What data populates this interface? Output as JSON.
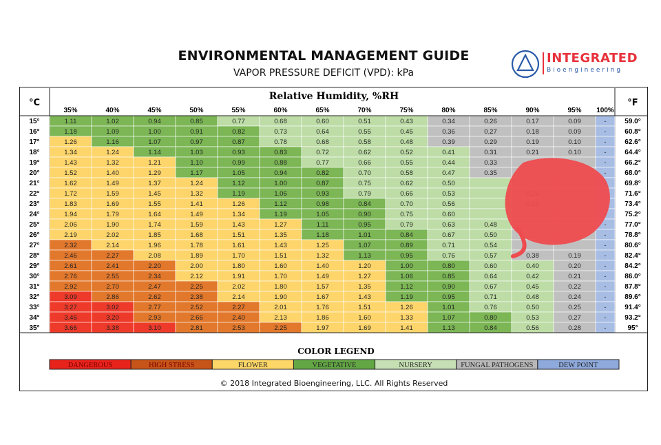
{
  "header": {
    "title": "ENVIRONMENTAL MANAGEMENT GUIDE",
    "subtitle": "VAPOR PRESSURE DEFICIT (VPD): kPa"
  },
  "logo": {
    "brand": "INTEGRATED",
    "tagline": "Bioengineering",
    "colors": {
      "red": "#e8323c",
      "blue": "#2a5aa8"
    }
  },
  "chart_data": {
    "type": "heatmap",
    "title": "Relative Humidity, %RH",
    "celsius_label": "°C",
    "fahrenheit_label": "°F",
    "columns": [
      "35%",
      "40%",
      "45%",
      "50%",
      "55%",
      "60%",
      "65%",
      "70%",
      "75%",
      "80%",
      "85%",
      "90%",
      "95%",
      "100%"
    ],
    "rows_c": [
      "15°",
      "16°",
      "17°",
      "18°",
      "19°",
      "20°",
      "21°",
      "22°",
      "23°",
      "24°",
      "25°",
      "26°",
      "27°",
      "28°",
      "29°",
      "30°",
      "31°",
      "32°",
      "33°",
      "34°",
      "35°"
    ],
    "rows_f": [
      "59.0°",
      "60.8°",
      "62.6°",
      "64.4°",
      "66.2°",
      "68.0°",
      "69.8°",
      "71.6°",
      "73.4°",
      "75.2°",
      "77.0°",
      "78.8°",
      "80.6°",
      "82.4°",
      "84.2°",
      "86.0°",
      "87.8°",
      "89.6°",
      "91.4°",
      "93.2°",
      "95°"
    ],
    "values": [
      [
        "1.11",
        "1.02",
        "0.94",
        "0.85",
        "0.77",
        "0.68",
        "0.60",
        "0.51",
        "0.43",
        "0.34",
        "0.26",
        "0.17",
        "0.09",
        "-"
      ],
      [
        "1.18",
        "1.09",
        "1.00",
        "0.91",
        "0.82",
        "0.73",
        "0.64",
        "0.55",
        "0.45",
        "0.36",
        "0.27",
        "0.18",
        "0.09",
        "-"
      ],
      [
        "1.26",
        "1.16",
        "1.07",
        "0.97",
        "0.87",
        "0.78",
        "0.68",
        "0.58",
        "0.48",
        "0.39",
        "0.29",
        "0.19",
        "0.10",
        "-"
      ],
      [
        "1.34",
        "1.24",
        "1.14",
        "1.03",
        "0.93",
        "0.83",
        "0.72",
        "0.62",
        "0.52",
        "0.41",
        "0.31",
        "0.21",
        "0.10",
        "-"
      ],
      [
        "1.43",
        "1.32",
        "1.21",
        "1.10",
        "0.99",
        "0.88",
        "0.77",
        "0.66",
        "0.55",
        "0.44",
        "0.33",
        "",
        "",
        "-"
      ],
      [
        "1.52",
        "1.40",
        "1.29",
        "1.17",
        "1.05",
        "0.94",
        "0.82",
        "0.70",
        "0.58",
        "0.47",
        "0.35",
        "",
        "",
        "-"
      ],
      [
        "1.62",
        "1.49",
        "1.37",
        "1.24",
        "1.12",
        "1.00",
        "0.87",
        "0.75",
        "0.62",
        "0.50",
        "",
        "",
        "",
        "-"
      ],
      [
        "1.72",
        "1.59",
        "1.45",
        "1.32",
        "1.19",
        "1.06",
        "0.93",
        "0.79",
        "0.66",
        "0.53",
        "",
        "0.26",
        "",
        "-"
      ],
      [
        "1.83",
        "1.69",
        "1.55",
        "1.41",
        "1.26",
        "1.12",
        "0.98",
        "0.84",
        "0.70",
        "0.56",
        "",
        "0.28",
        "",
        "-"
      ],
      [
        "1.94",
        "1.79",
        "1.64",
        "1.49",
        "1.34",
        "1.19",
        "1.05",
        "0.90",
        "0.75",
        "0.60",
        "",
        "",
        "",
        "-"
      ],
      [
        "2.06",
        "1.90",
        "1.74",
        "1.59",
        "1.43",
        "1.27",
        "1.11",
        "0.95",
        "0.79",
        "0.63",
        "0.48",
        "",
        "",
        "-"
      ],
      [
        "2.19",
        "2.02",
        "1.85",
        "1.68",
        "1.51",
        "1.35",
        "1.18",
        "1.01",
        "0.84",
        "0.67",
        "0.50",
        "",
        "",
        "-"
      ],
      [
        "2.32",
        "2.14",
        "1.96",
        "1.78",
        "1.61",
        "1.43",
        "1.25",
        "1.07",
        "0.89",
        "0.71",
        "0.54",
        "",
        "",
        "-"
      ],
      [
        "2.46",
        "2.27",
        "2.08",
        "1.89",
        "1.70",
        "1.51",
        "1.32",
        "1.13",
        "0.95",
        "0.76",
        "0.57",
        "0.38",
        "0.19",
        "-"
      ],
      [
        "2.61",
        "2.41",
        "2.20",
        "2.00",
        "1.80",
        "1.60",
        "1.40",
        "1.20",
        "1.00",
        "0.80",
        "0.60",
        "0.40",
        "0.20",
        "-"
      ],
      [
        "2.76",
        "2.55",
        "2.34",
        "2.12",
        "1.91",
        "1.70",
        "1.49",
        "1.27",
        "1.06",
        "0.85",
        "0.64",
        "0.42",
        "0.21",
        "-"
      ],
      [
        "2.92",
        "2.70",
        "2.47",
        "2.25",
        "2.02",
        "1.80",
        "1.57",
        "1.35",
        "1.12",
        "0.90",
        "0.67",
        "0.45",
        "0.22",
        "-"
      ],
      [
        "3.09",
        "2.86",
        "2.62",
        "2.38",
        "2.14",
        "1.90",
        "1.67",
        "1.43",
        "1.19",
        "0.95",
        "0.71",
        "0.48",
        "0.24",
        "-"
      ],
      [
        "3.27",
        "3.02",
        "2.77",
        "2.52",
        "2.27",
        "2.01",
        "1.76",
        "1.51",
        "1.26",
        "1.01",
        "0.76",
        "0.50",
        "0.25",
        "-"
      ],
      [
        "3.46",
        "3.20",
        "2.93",
        "2.66",
        "2.40",
        "2.13",
        "1.86",
        "1.60",
        "1.33",
        "1.07",
        "0.80",
        "0.53",
        "0.27",
        "-"
      ],
      [
        "3.66",
        "3.38",
        "3.10",
        "2.81",
        "2.53",
        "2.25",
        "1.97",
        "1.69",
        "1.41",
        "1.13",
        "0.84",
        "0.56",
        "0.28",
        "-"
      ]
    ],
    "zones": [
      {
        "name": "DANGEROUS",
        "min": 3.0,
        "color": "#e8231c",
        "cell_color": "#ee3a2a"
      },
      {
        "name": "HIGH STRESS",
        "min": 2.2,
        "color": "#c75418",
        "cell_color": "#e2782c"
      },
      {
        "name": "FLOWER",
        "min": 1.2,
        "color": "#fcd768",
        "cell_color": "#fdd56b"
      },
      {
        "name": "VEGETATIVE",
        "min": 0.8,
        "color": "#63a644",
        "cell_color": "#7cb655"
      },
      {
        "name": "NURSERY",
        "min": 0.4,
        "color": "#c6e0b4",
        "cell_color": "#bddca6"
      },
      {
        "name": "FUNGAL PATHOGENS",
        "min": 0.0,
        "color": "#b8b8b8",
        "cell_color": "#c0c0c0"
      },
      {
        "name": "DEW POINT",
        "min": -1,
        "color": "#8ea9db",
        "cell_color": "#a8bde3"
      }
    ],
    "legend_title": "COLOR LEGEND"
  },
  "markup": {
    "scribble_color": "#ee4b4e"
  },
  "footer": {
    "copyright": "© 2018 Integrated Bioengineering, LLC. All Rights Reserved"
  }
}
